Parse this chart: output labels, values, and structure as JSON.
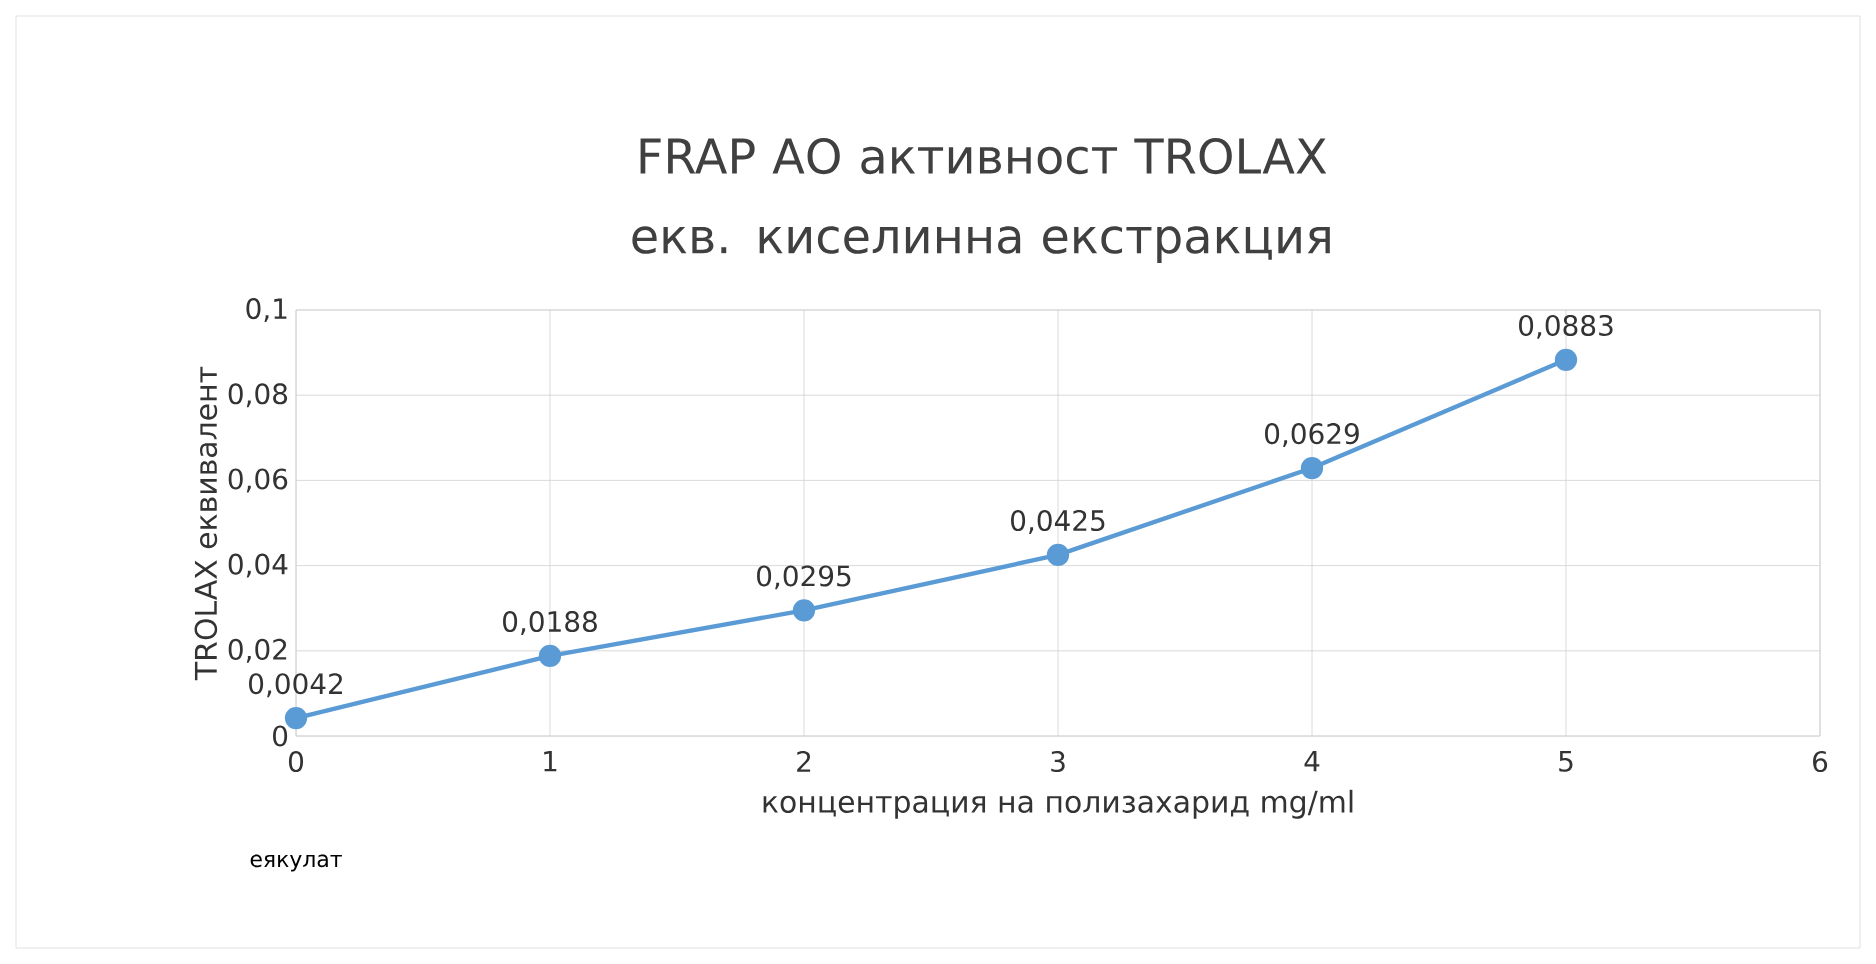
{
  "chart_data": {
    "type": "line",
    "title": "FRAP АО активност TROLAX екв. киселинна екстракция",
    "xlabel": "концентрация на полизахарид mg/ml",
    "ylabel": "TROLAX еквивалент",
    "x": [
      0,
      1,
      2,
      3,
      4,
      5
    ],
    "series": [
      {
        "color": "#5b9bd5",
        "values": [
          0.0042,
          0.0188,
          0.0295,
          0.0425,
          0.0629,
          0.0883
        ],
        "value_labels": [
          "0,0042",
          "0,0188",
          "0,0295",
          "0,0425",
          "0,0629",
          "0,0883"
        ]
      }
    ],
    "xlim": [
      0,
      6
    ],
    "xticks": [
      0,
      1,
      2,
      3,
      4,
      5,
      6
    ],
    "ylim": [
      0,
      0.1
    ],
    "yticks": [
      0,
      {
        "value": 0.02,
        "label": "0,02"
      },
      {
        "value": 0.04,
        "label": "0,04"
      },
      {
        "value": 0.06,
        "label": "0,06"
      },
      {
        "value": 0.08,
        "label": "0,08"
      },
      {
        "value": 0.1,
        "label": "0,1"
      }
    ],
    "grid": true,
    "marker": "circle",
    "line_style": "solid",
    "annotations": [
      "еякулат"
    ]
  }
}
